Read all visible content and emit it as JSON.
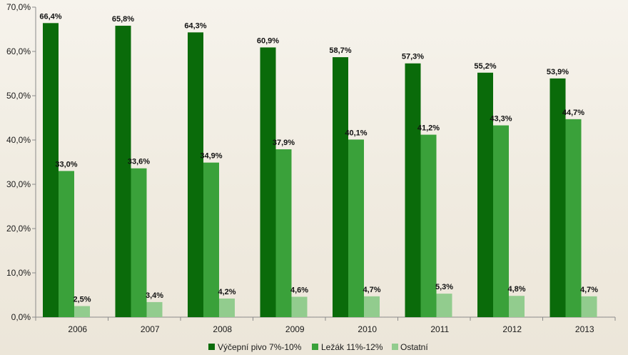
{
  "chart_data": {
    "type": "bar",
    "categories": [
      "2006",
      "2007",
      "2008",
      "2009",
      "2010",
      "2011",
      "2012",
      "2013"
    ],
    "series": [
      {
        "name": "Výčepní pivo 7%-10%",
        "color": "#0a6b0a",
        "values": [
          66.4,
          65.8,
          64.3,
          60.9,
          58.7,
          57.3,
          55.2,
          53.9
        ],
        "labels": [
          "66,4%",
          "65,8%",
          "64,3%",
          "60,9%",
          "58,7%",
          "57,3%",
          "55,2%",
          "53,9%"
        ]
      },
      {
        "name": "Ležák 11%-12%",
        "color": "#3aa13a",
        "values": [
          33.0,
          33.6,
          34.9,
          37.9,
          40.1,
          41.2,
          43.3,
          44.7
        ],
        "labels": [
          "33,0%",
          "33,6%",
          "34,9%",
          "37,9%",
          "40,1%",
          "41,2%",
          "43,3%",
          "44,7%"
        ]
      },
      {
        "name": "Ostatní",
        "color": "#92cc8e",
        "values": [
          2.5,
          3.4,
          4.2,
          4.6,
          4.7,
          5.3,
          4.8,
          4.7
        ],
        "labels": [
          "2,5%",
          "3,4%",
          "4,2%",
          "4,6%",
          "4,7%",
          "5,3%",
          "4,8%",
          "4,7%"
        ]
      }
    ],
    "y_ticks": [
      "0,0%",
      "10,0%",
      "20,0%",
      "30,0%",
      "40,0%",
      "50,0%",
      "60,0%",
      "70,0%"
    ],
    "ylim": [
      0,
      70
    ],
    "grid": false,
    "legend_position": "bottom"
  }
}
